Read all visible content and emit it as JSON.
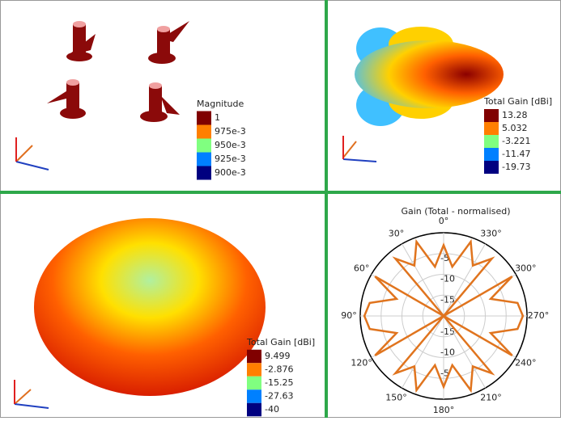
{
  "panels": [
    {
      "legend_title": "Magnitude",
      "legend_labels": [
        "1",
        "975e-3",
        "950e-3",
        "925e-3",
        "900e-3"
      ]
    },
    {
      "legend_title": "Total Gain [dBi]",
      "legend_labels": [
        "13.28",
        "5.032",
        "-3.221",
        "-11.47",
        "-19.73"
      ]
    },
    {
      "legend_title": "Total Gain [dBi]",
      "legend_labels": [
        "9.499",
        "-2.876",
        "-15.25",
        "-27.63",
        "-40"
      ]
    }
  ],
  "chart_data": {
    "type": "polar",
    "title": "Gain (Total - normalised)",
    "color": "#e0741e",
    "theta": [
      0,
      10,
      20,
      30,
      40,
      50,
      60,
      70,
      80,
      90,
      100,
      110,
      120,
      130,
      140,
      150,
      160,
      170,
      180,
      190,
      200,
      210,
      220,
      230,
      240,
      250,
      260,
      270,
      280,
      290,
      300,
      310,
      320,
      330,
      340,
      350
    ],
    "values": [
      -3,
      -8,
      -1,
      -6,
      -2,
      -20,
      -1,
      -8,
      -2,
      -1,
      -2,
      -8,
      -1,
      -20,
      -2,
      -6,
      -1,
      -8,
      -3,
      -8,
      -1,
      -6,
      -2,
      -20,
      -1,
      -8,
      -2,
      -1,
      -2,
      -8,
      -1,
      -20,
      -2,
      -6,
      -1,
      -8
    ],
    "rlim": [
      -20,
      0
    ],
    "rticks": [
      -15,
      -10,
      -5
    ],
    "xticks": [
      {
        "value": 0,
        "label": "0°"
      },
      {
        "value": 30,
        "label": "30°"
      },
      {
        "value": 60,
        "label": "60°"
      },
      {
        "value": 90,
        "label": "90°"
      },
      {
        "value": 120,
        "label": "120°"
      },
      {
        "value": 150,
        "label": "150°"
      },
      {
        "value": 180,
        "label": "180°"
      },
      {
        "value": 210,
        "label": "210°"
      },
      {
        "value": 240,
        "label": "240°"
      },
      {
        "value": 270,
        "label": "270°"
      },
      {
        "value": 300,
        "label": "300°"
      },
      {
        "value": 330,
        "label": "330°"
      }
    ]
  }
}
